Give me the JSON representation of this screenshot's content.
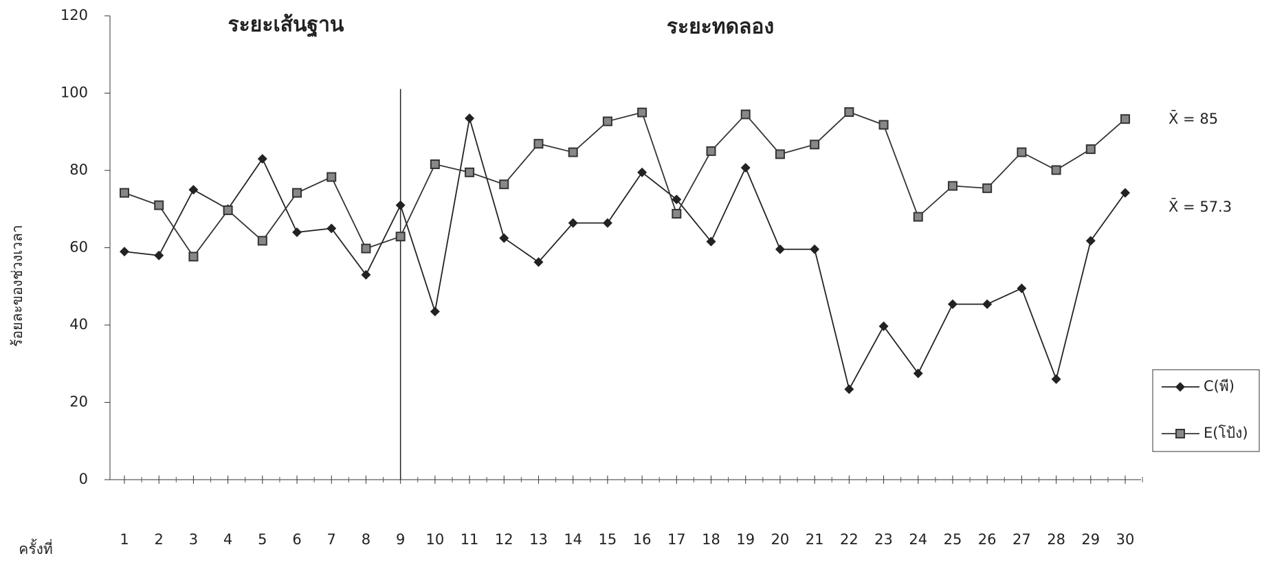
{
  "chart_data": {
    "type": "line",
    "phase_labels": [
      "ระยะเส้นฐาน",
      "ระยะทดลอง"
    ],
    "phase_divider_category": "9",
    "ylabel": "ร้อยละของช่วงเวลา",
    "xlabel": "ครั้งที่",
    "annotations": [
      "X̄ = 85",
      "X̄ = 57.3"
    ],
    "categories": [
      "1",
      "2",
      "3",
      "4",
      "5",
      "6",
      "7",
      "8",
      "9",
      "10",
      "11",
      "12",
      "13",
      "14",
      "15",
      "16",
      "17",
      "18",
      "19",
      "20",
      "21",
      "22",
      "23",
      "24",
      "25",
      "26",
      "27",
      "28",
      "29",
      "30"
    ],
    "ylim": [
      0,
      120
    ],
    "yticks": [
      0,
      20,
      40,
      60,
      80,
      100,
      120
    ],
    "legend": "right",
    "series": [
      {
        "name": "C(พี)",
        "color": "#222222",
        "marker": "diamond",
        "values": [
          59,
          58,
          75,
          70,
          83,
          64,
          65,
          53,
          71,
          43.5,
          93.5,
          62.5,
          56.3,
          66.4,
          66.4,
          79.5,
          72.5,
          61.6,
          80.7,
          59.6,
          59.6,
          23.4,
          39.7,
          27.5,
          45.4,
          45.4,
          49.5,
          26,
          61.8,
          74.2
        ]
      },
      {
        "name": "E(โป้ง)",
        "color": "#333333",
        "marker": "square",
        "values": [
          74.2,
          71,
          57.7,
          69.7,
          61.8,
          74.2,
          78.3,
          59.8,
          62.9,
          81.6,
          79.5,
          76.4,
          86.9,
          84.7,
          92.7,
          95,
          68.8,
          85,
          94.5,
          84.2,
          86.7,
          95.1,
          91.8,
          68,
          76,
          75.4,
          84.7,
          80.1,
          85.5,
          93.3
        ]
      }
    ]
  }
}
